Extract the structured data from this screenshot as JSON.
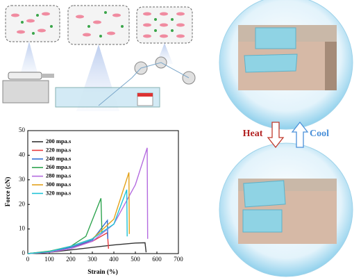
{
  "chart_data": {
    "type": "line",
    "xlabel": "Strain (%)",
    "ylabel": "Force (cN)",
    "xlim": [
      0,
      700
    ],
    "xticks": [
      0,
      100,
      200,
      300,
      400,
      500,
      600,
      700
    ],
    "ylim": [
      0,
      50
    ],
    "yticks": [
      0,
      10,
      20,
      30,
      40,
      50
    ],
    "legend": "upper left",
    "series": [
      {
        "name": "200 mpa.s",
        "color": "#333333",
        "x": [
          0,
          100,
          200,
          300,
          400,
          500,
          545,
          550
        ],
        "values": [
          0,
          0.5,
          1.5,
          2.5,
          3.5,
          4.3,
          4.4,
          0.5
        ]
      },
      {
        "name": "220 mpa.s",
        "color": "#e8383d",
        "x": [
          0,
          100,
          200,
          300,
          370,
          375
        ],
        "values": [
          0,
          0.8,
          2.5,
          5,
          8.5,
          2
        ]
      },
      {
        "name": "240 mpa.s",
        "color": "#2f6fd6",
        "x": [
          0,
          100,
          200,
          300,
          370,
          372
        ],
        "values": [
          0,
          0.8,
          2.5,
          5.5,
          13.5,
          6
        ]
      },
      {
        "name": "260 mpa.s",
        "color": "#2ea44f",
        "x": [
          0,
          100,
          200,
          270,
          340,
          345
        ],
        "values": [
          0,
          1,
          3,
          7,
          22.5,
          8
        ]
      },
      {
        "name": "280 mpa.s",
        "color": "#b46adf",
        "x": [
          0,
          100,
          200,
          300,
          400,
          500,
          555,
          557
        ],
        "values": [
          0,
          0.5,
          2,
          5,
          12,
          28,
          43,
          6
        ]
      },
      {
        "name": "300 mpa.s",
        "color": "#e3a21a",
        "x": [
          0,
          100,
          200,
          300,
          400,
          470,
          472
        ],
        "values": [
          0,
          0.8,
          3,
          6,
          14,
          33,
          8
        ]
      },
      {
        "name": "320 mpa.s",
        "color": "#1fc3d6",
        "x": [
          0,
          100,
          200,
          300,
          400,
          460,
          462
        ],
        "values": [
          0,
          0.8,
          3,
          6,
          12,
          26,
          7
        ]
      }
    ]
  },
  "labels": {
    "heat": "Heat",
    "cool": "Cool"
  }
}
